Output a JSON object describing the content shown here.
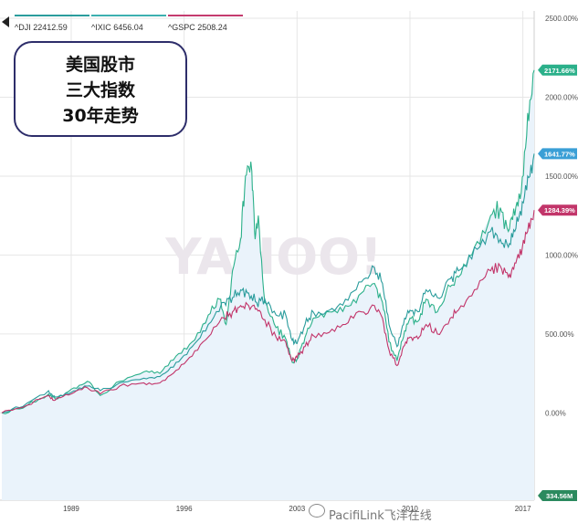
{
  "legend": [
    {
      "label": "^DJI 22412.59",
      "color": "#2a9c9c"
    },
    {
      "label": "^IXIC 6456.04",
      "color": "#3cb0b0"
    },
    {
      "label": "^GSPC 2508.24",
      "color": "#c43b6e"
    }
  ],
  "title_box": {
    "lines": [
      "美国股市",
      "三大指数",
      "30年走势"
    ]
  },
  "watermark": {
    "text": "PacifiLink飞洋在线",
    "icon": "wechat-icon"
  },
  "background_watermark": "YAHOO! FINANCE",
  "colors": {
    "grid": "#e6e6e6",
    "area": "#eaf3fb",
    "dji": "#2a9c9c",
    "ixic": "#2bb08a",
    "gspc": "#c2356a",
    "volume_red": "#f2b3b3",
    "volume_green": "#a8dcc8",
    "badge_volume": "#2b8a5e"
  },
  "chart_data": {
    "type": "line",
    "title": "",
    "x_ticks": [
      "1989",
      "1996",
      "2003",
      "2010",
      "2017"
    ],
    "y_ticks": [
      "2500.00%",
      "2000.00%",
      "1500.00%",
      "1000.00%",
      "500.00%",
      "0.00%"
    ],
    "ylim": [
      -50,
      2500
    ],
    "xlim": [
      1984.7,
      2017.7
    ],
    "y_unit": "%",
    "grid": true,
    "legend_position": "top-left",
    "series": [
      {
        "name": "^IXIC",
        "end_label": "2171.66%",
        "points": [
          [
            1984.7,
            0
          ],
          [
            1986,
            30
          ],
          [
            1987.6,
            120
          ],
          [
            1988,
            90
          ],
          [
            1989,
            150
          ],
          [
            1990,
            200
          ],
          [
            1990.8,
            110
          ],
          [
            1992,
            200
          ],
          [
            1993.5,
            260
          ],
          [
            1994.5,
            250
          ],
          [
            1995.5,
            360
          ],
          [
            1996.5,
            450
          ],
          [
            1997.5,
            620
          ],
          [
            1998.2,
            720
          ],
          [
            1998.6,
            560
          ],
          [
            1999,
            900
          ],
          [
            1999.5,
            1100
          ],
          [
            1999.8,
            1500
          ],
          [
            2000.2,
            1530
          ],
          [
            2000.4,
            1100
          ],
          [
            2000.6,
            1250
          ],
          [
            2001,
            700
          ],
          [
            2001.7,
            540
          ],
          [
            2002.3,
            470
          ],
          [
            2002.7,
            320
          ],
          [
            2003,
            340
          ],
          [
            2003.5,
            480
          ],
          [
            2004,
            600
          ],
          [
            2005,
            640
          ],
          [
            2006,
            680
          ],
          [
            2007,
            760
          ],
          [
            2007.8,
            820
          ],
          [
            2008.3,
            700
          ],
          [
            2008.7,
            450
          ],
          [
            2009.2,
            330
          ],
          [
            2009.6,
            480
          ],
          [
            2010,
            600
          ],
          [
            2010.5,
            580
          ],
          [
            2011,
            720
          ],
          [
            2011.7,
            640
          ],
          [
            2012.5,
            800
          ],
          [
            2013,
            860
          ],
          [
            2014,
            1050
          ],
          [
            2015,
            1250
          ],
          [
            2015.6,
            1300
          ],
          [
            2016.1,
            1150
          ],
          [
            2016.5,
            1250
          ],
          [
            2016.9,
            1400
          ],
          [
            2017.3,
            1900
          ],
          [
            2017.7,
            2171.66
          ]
        ]
      },
      {
        "name": "^DJI",
        "end_label": "1641.77%",
        "points": [
          [
            1984.7,
            0
          ],
          [
            1986,
            40
          ],
          [
            1987.6,
            140
          ],
          [
            1988,
            100
          ],
          [
            1989,
            130
          ],
          [
            1990,
            170
          ],
          [
            1990.8,
            140
          ],
          [
            1992,
            190
          ],
          [
            1993.5,
            220
          ],
          [
            1994.5,
            230
          ],
          [
            1995.5,
            320
          ],
          [
            1996.5,
            420
          ],
          [
            1997.5,
            560
          ],
          [
            1998.5,
            700
          ],
          [
            1999,
            730
          ],
          [
            1999.5,
            780
          ],
          [
            2000,
            760
          ],
          [
            2000.5,
            700
          ],
          [
            2001,
            720
          ],
          [
            2001.7,
            620
          ],
          [
            2002.3,
            620
          ],
          [
            2002.7,
            460
          ],
          [
            2003,
            440
          ],
          [
            2003.5,
            560
          ],
          [
            2004,
            640
          ],
          [
            2005,
            650
          ],
          [
            2006,
            720
          ],
          [
            2007,
            830
          ],
          [
            2007.8,
            920
          ],
          [
            2008.3,
            820
          ],
          [
            2008.7,
            560
          ],
          [
            2009.2,
            420
          ],
          [
            2009.6,
            560
          ],
          [
            2010,
            650
          ],
          [
            2010.5,
            640
          ],
          [
            2011,
            780
          ],
          [
            2011.7,
            730
          ],
          [
            2012.5,
            850
          ],
          [
            2013,
            900
          ],
          [
            2014,
            1050
          ],
          [
            2015,
            1150
          ],
          [
            2015.6,
            1100
          ],
          [
            2016.1,
            1050
          ],
          [
            2016.5,
            1150
          ],
          [
            2016.9,
            1250
          ],
          [
            2017.3,
            1500
          ],
          [
            2017.7,
            1641.77
          ]
        ]
      },
      {
        "name": "^GSPC",
        "end_label": "1284.39%",
        "points": [
          [
            1984.7,
            0
          ],
          [
            1986,
            35
          ],
          [
            1987.6,
            110
          ],
          [
            1988,
            80
          ],
          [
            1989,
            120
          ],
          [
            1990,
            160
          ],
          [
            1990.8,
            120
          ],
          [
            1992,
            170
          ],
          [
            1993.5,
            190
          ],
          [
            1994.5,
            190
          ],
          [
            1995.5,
            270
          ],
          [
            1996.5,
            360
          ],
          [
            1997.5,
            480
          ],
          [
            1998.5,
            600
          ],
          [
            1999,
            640
          ],
          [
            1999.5,
            680
          ],
          [
            2000,
            680
          ],
          [
            2000.5,
            660
          ],
          [
            2001,
            590
          ],
          [
            2001.7,
            480
          ],
          [
            2002.3,
            450
          ],
          [
            2002.7,
            330
          ],
          [
            2003,
            350
          ],
          [
            2003.5,
            420
          ],
          [
            2004,
            490
          ],
          [
            2005,
            510
          ],
          [
            2006,
            560
          ],
          [
            2007,
            640
          ],
          [
            2007.8,
            680
          ],
          [
            2008.3,
            600
          ],
          [
            2008.7,
            400
          ],
          [
            2009.2,
            300
          ],
          [
            2009.6,
            420
          ],
          [
            2010,
            480
          ],
          [
            2010.5,
            470
          ],
          [
            2011,
            560
          ],
          [
            2011.7,
            500
          ],
          [
            2012.5,
            600
          ],
          [
            2013,
            650
          ],
          [
            2014,
            780
          ],
          [
            2015,
            900
          ],
          [
            2015.6,
            930
          ],
          [
            2016.1,
            860
          ],
          [
            2016.5,
            950
          ],
          [
            2016.9,
            1000
          ],
          [
            2017.3,
            1150
          ],
          [
            2017.7,
            1284.39
          ]
        ]
      }
    ],
    "volume": {
      "label": "334.56M"
    }
  }
}
